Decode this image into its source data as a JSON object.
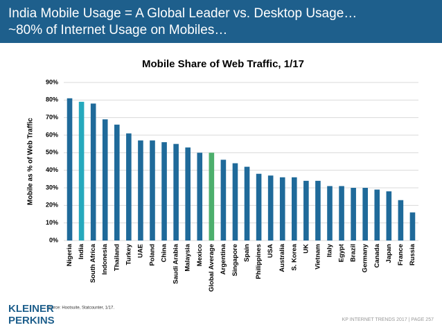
{
  "header": {
    "lines": [
      "India Mobile Usage = A Global Leader vs. Desktop Usage…",
      "~80% of Internet Usage on Mobiles…"
    ]
  },
  "chart_data": {
    "type": "bar",
    "title": "Mobile Share of Web Traffic, 1/17",
    "y_label": "Mobile as % of Web Traffic",
    "categories": [
      "Nigeria",
      "India",
      "South Africa",
      "Indonesia",
      "Thailand",
      "Turkey",
      "UAE",
      "Poland",
      "China",
      "Saudi Arabia",
      "Malaysia",
      "Mexico",
      "Global Average",
      "Argentina",
      "Singapore",
      "Spain",
      "Philippines",
      "USA",
      "Australia",
      "S. Korea",
      "UK",
      "Vietnam",
      "Italy",
      "Egypt",
      "Brazil",
      "Germany",
      "Canada",
      "Japan",
      "France",
      "Russia"
    ],
    "values": [
      81,
      79,
      78,
      69,
      66,
      61,
      57,
      57,
      56,
      55,
      53,
      50,
      50,
      46,
      44,
      42,
      38,
      37,
      36,
      36,
      34,
      34,
      31,
      31,
      30,
      30,
      29,
      28,
      23,
      16
    ],
    "colors": [
      "#1f6a9a",
      "#26a9bd",
      "#1f6a9a",
      "#1f6a9a",
      "#1f6a9a",
      "#1f6a9a",
      "#1f6a9a",
      "#1f6a9a",
      "#1f6a9a",
      "#1f6a9a",
      "#1f6a9a",
      "#1f6a9a",
      "#4daf6c",
      "#1f6a9a",
      "#1f6a9a",
      "#1f6a9a",
      "#1f6a9a",
      "#1f6a9a",
      "#1f6a9a",
      "#1f6a9a",
      "#1f6a9a",
      "#1f6a9a",
      "#1f6a9a",
      "#1f6a9a",
      "#1f6a9a",
      "#1f6a9a",
      "#1f6a9a",
      "#1f6a9a",
      "#1f6a9a",
      "#1f6a9a"
    ],
    "ylim": [
      0,
      90
    ],
    "yticks": [
      {
        "value": 0,
        "label": "0%"
      },
      {
        "value": 10,
        "label": "10%"
      },
      {
        "value": 20,
        "label": "20%"
      },
      {
        "value": 30,
        "label": "30%"
      },
      {
        "value": 40,
        "label": "40%"
      },
      {
        "value": 50,
        "label": "50%"
      },
      {
        "value": 60,
        "label": "60%"
      },
      {
        "value": 70,
        "label": "70%"
      },
      {
        "value": 80,
        "label": "80%"
      },
      {
        "value": 90,
        "label": "90%"
      }
    ],
    "grid": true
  },
  "source": "Source: Hootsuite, Statcounter, 1/17.",
  "logo": [
    "KLEINER",
    "PERKINS"
  ],
  "footer": "KP INTERNET TRENDS 2017  |  PAGE 257"
}
